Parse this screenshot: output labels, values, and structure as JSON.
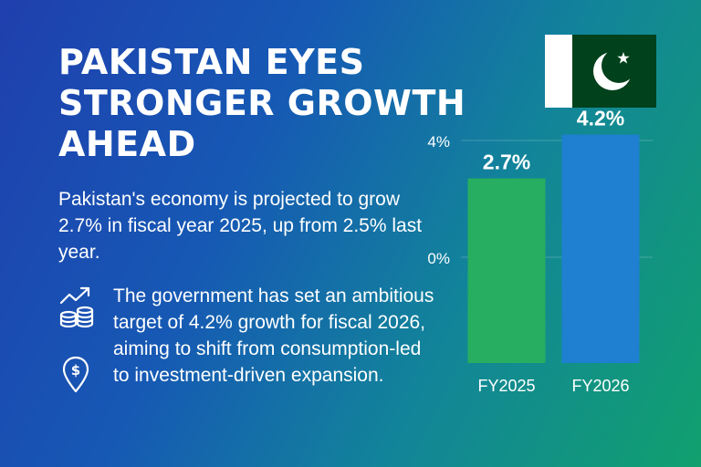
{
  "headline": "PAKISTAN EYES STRONGER GROWTH AHEAD",
  "intro": "Pakistan's economy is projected to grow 2.7% in fiscal year 2025, up from 2.5% last year.",
  "point": "The government has set an ambitious target of 4.2% growth for fiscal 2026, aiming to shift from consumption-led to investment-driven expansion.",
  "icons": [
    "growth-chart-coins-icon",
    "dollar-location-pin-icon",
    "pakistan-flag-icon"
  ],
  "colors": {
    "background_start": "#1f3fae",
    "background_end": "#11a06e",
    "bar_fy2025": "#27ae60",
    "bar_fy2026": "#1f7fd0",
    "flag_green": "#01411c",
    "flag_white": "#ffffff"
  },
  "chart_data": {
    "type": "bar",
    "categories": [
      "FY2025",
      "FY2026"
    ],
    "values": [
      2.7,
      4.2
    ],
    "value_labels": [
      "2.7%",
      "4.2%"
    ],
    "y_ticks": [
      {
        "value": 4,
        "label": "4%"
      },
      {
        "value": 0,
        "label": "0%"
      }
    ],
    "grid": true
  }
}
